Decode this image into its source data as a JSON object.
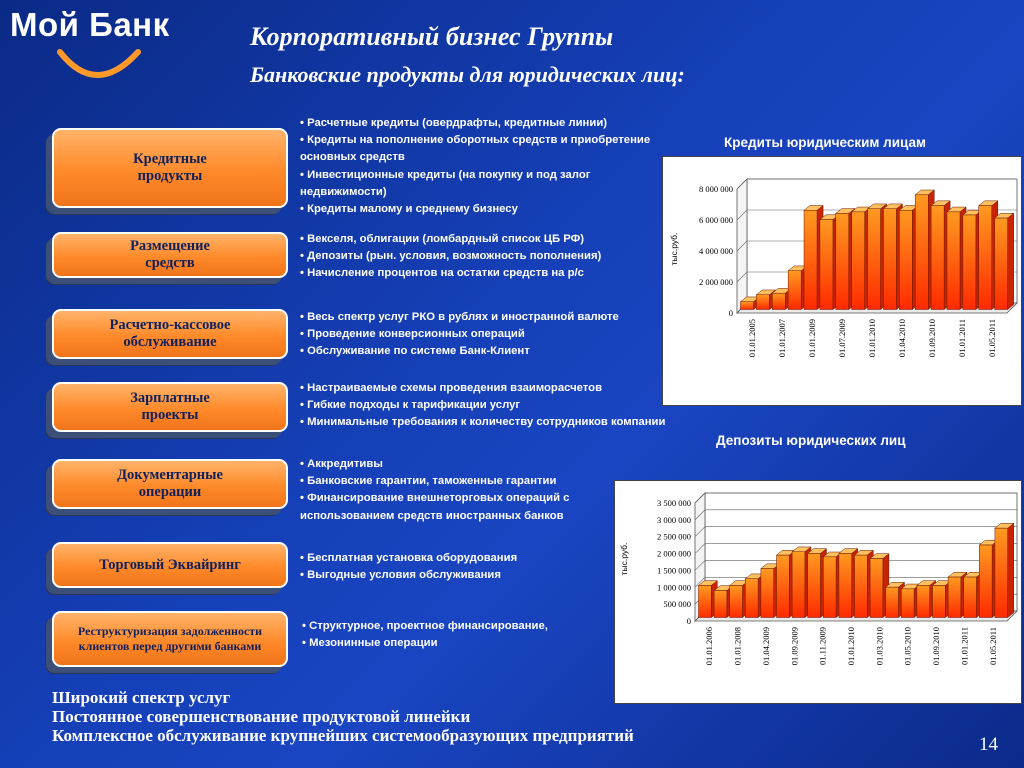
{
  "logo": {
    "text": "Мой Банк",
    "icon": "smile-arc-icon",
    "accent": "#ff9a2a"
  },
  "header": {
    "title": "Корпоративный бизнес Группы",
    "subtitle": "Банковские продукты для юридических лиц:"
  },
  "products": [
    {
      "label": "Кредитные продукты",
      "bullets": [
        "• Расчетные кредиты (овердрафты, кредитные линии)",
        "• Кредиты на пополнение оборотных средств и приобретение основных средств",
        "• Инвестиционные кредиты (на покупку и под залог недвижимости)",
        "• Кредиты малому и среднему бизнесу"
      ]
    },
    {
      "label": "Размещение средств",
      "bullets": [
        "• Векселя, облигации (ломбардный список ЦБ РФ)",
        "• Депозиты (рын. условия, возможность пополнения)",
        "• Начисление процентов на остатки средств на р/с"
      ]
    },
    {
      "label": "Расчетно-кассовое обслуживание",
      "bullets": [
        "• Весь спектр услуг РКО в рублях и иностранной валюте",
        "• Проведение конверсионных операций",
        "• Обслуживание по системе Банк-Клиент"
      ]
    },
    {
      "label": "Зарплатные проекты",
      "bullets": [
        "• Настраиваемые схемы проведения взаиморасчетов",
        "• Гибкие подходы к тарификации услуг",
        "• Минимальные требования к количеству сотрудников компании"
      ]
    },
    {
      "label": "Документарные операции",
      "bullets": [
        "• Аккредитивы",
        "• Банковские гарантии, таможенные гарантии",
        "• Финансирование внешнеторговых операций с использованием средств иностранных банков"
      ]
    },
    {
      "label": "Торговый Эквайринг",
      "bullets": [
        "• Бесплатная установка оборудования",
        "• Выгодные условия обслуживания"
      ]
    },
    {
      "label": "Реструктуризация задолженности клиентов перед другими банками",
      "bullets": [
        "• Структурное, проектное  финансирование,",
        "• Мезонинные операции"
      ]
    }
  ],
  "footer": {
    "lines": [
      "Широкий спектр услуг",
      "Постоянное совершенствование продуктовой линейки",
      "Комплексное обслуживание крупнейших системообразующих предприятий"
    ]
  },
  "page_number": "14",
  "chart_data": [
    {
      "type": "bar",
      "title": "Кредиты юридическим лицам",
      "ylabel": "тыс.руб.",
      "ylim": [
        0,
        8000000
      ],
      "yticks": [
        "0",
        "2 000 000",
        "4 000 000",
        "6 000 000",
        "8 000 000"
      ],
      "xtick_labels": [
        "01.01.2005",
        "01.01.2007",
        "01.01.2009",
        "01.07.2009",
        "01.01.2010",
        "01.04.2010",
        "01.09.2010",
        "01.01.2011",
        "01.05.2011"
      ],
      "values": [
        500000,
        950000,
        1050000,
        2500000,
        6400000,
        5800000,
        6200000,
        6300000,
        6500000,
        6500000,
        6400000,
        7400000,
        6700000,
        6300000,
        6100000,
        6700000,
        5900000
      ],
      "bar_color": "#ff6a00",
      "grid": true
    },
    {
      "type": "bar",
      "title": "Депозиты юридических лиц",
      "ylabel": "тыс.руб.",
      "ylim": [
        0,
        3500000
      ],
      "yticks": [
        "0",
        "500 000",
        "1 000 000",
        "1 500 000",
        "2 000 000",
        "2 500 000",
        "3 000 000",
        "3 500 000"
      ],
      "xtick_labels": [
        "01.01.2006",
        "01.01.2008",
        "01.04.2009",
        "01.09.2009",
        "01.11.2009",
        "01.01.2010",
        "01.03.2010",
        "01.05.2010",
        "01.09.2010",
        "01.01.2011",
        "01.05.2011"
      ],
      "values": [
        950000,
        800000,
        950000,
        1150000,
        1450000,
        1850000,
        1950000,
        1900000,
        1800000,
        1900000,
        1850000,
        1750000,
        900000,
        850000,
        950000,
        950000,
        1200000,
        1200000,
        2150000,
        2650000
      ],
      "bar_color": "#ff6a00",
      "grid": true
    }
  ]
}
